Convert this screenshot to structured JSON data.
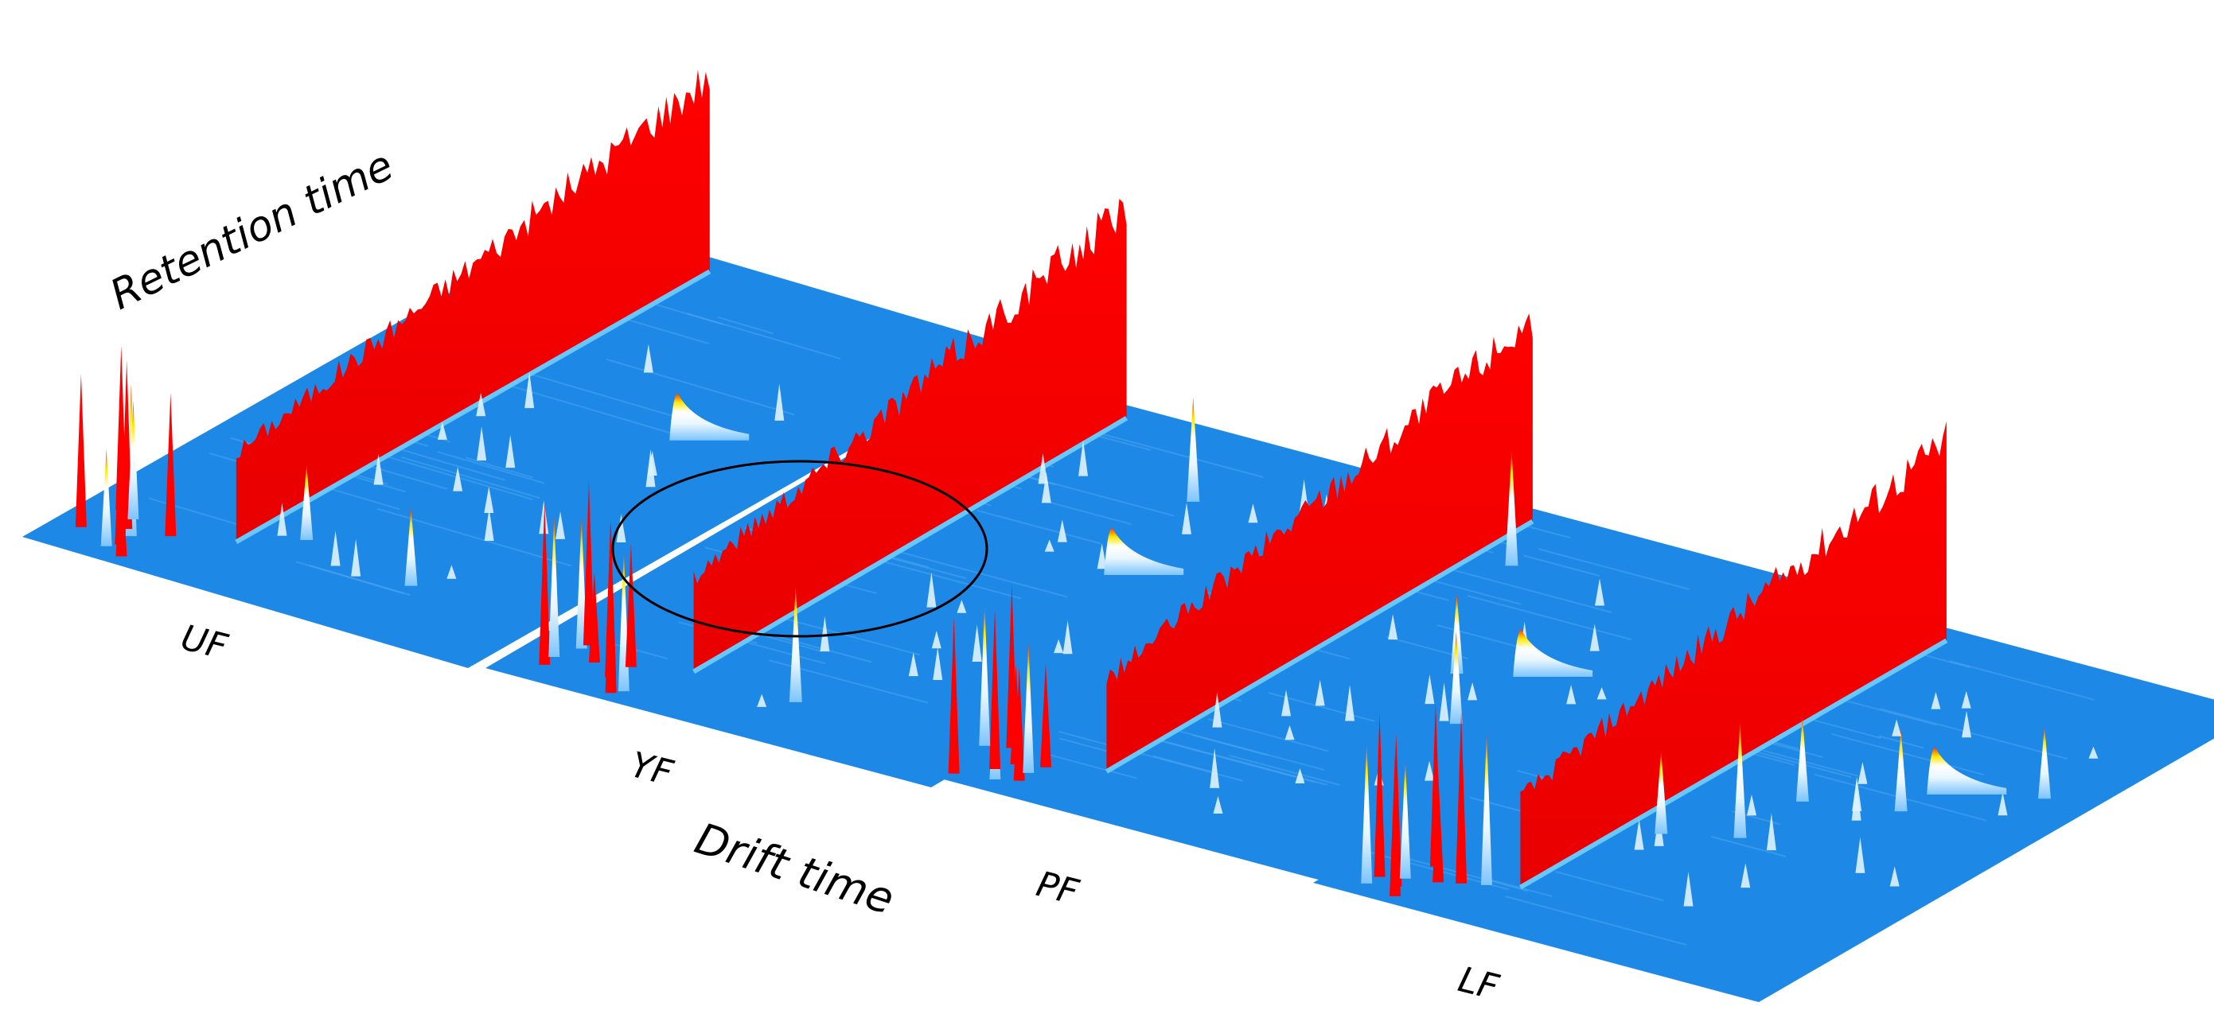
{
  "chart_data": {
    "type": "3d-surface",
    "xlabel": "Drift time",
    "ylabel": "Retention time",
    "colors": {
      "baseline": "#1e88e6",
      "baseline_light": "#4aa6f0",
      "rip_wall": "#ff0000",
      "peak_low": "#bfe4ff",
      "peak_mid": "#ffffff",
      "peak_high": "#ffe600",
      "peak_top": "#ff2a00",
      "annotation": "#000000"
    },
    "samples": [
      {
        "name": "UF"
      },
      {
        "name": "YF"
      },
      {
        "name": "PF"
      },
      {
        "name": "LF"
      }
    ],
    "annotation": {
      "shape": "ellipse",
      "sample": "YF"
    }
  }
}
